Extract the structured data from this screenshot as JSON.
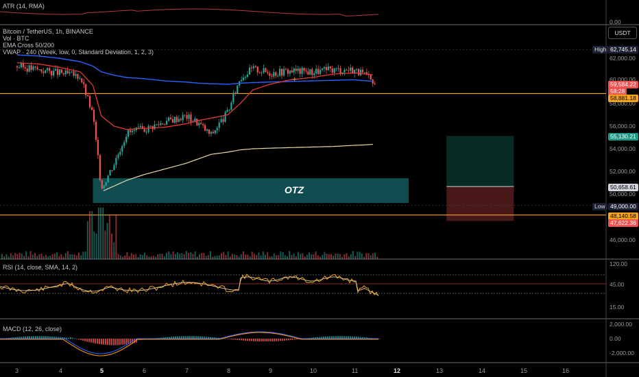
{
  "atr_pane": {
    "label": "ATR (14, RMA)",
    "ticks": [
      "",
      "0.00"
    ]
  },
  "header": {
    "symbol_line": "Bitcoin / TetherUS, 1h, BINANCE",
    "vol_line": "Vol · BTC",
    "ema_line": "EMA Cross 50/200",
    "vwap_line": "VWAP · 240 (Week, low, 0, Standard Deviation, 1, 2, 3)"
  },
  "currency_button": "USDT",
  "price_axis": {
    "ticks": [
      "62,000.00",
      "60,000.00",
      "58,000.00",
      "56,000.00",
      "54,000.00",
      "52,000.00",
      "50,000.00",
      "46,000.00"
    ],
    "high_label": "High",
    "high_value": "62,745.14",
    "low_label": "Low",
    "low_value": "49,000.00",
    "last_price": "59,584.22",
    "countdown": "58:28",
    "resistance_value": "58,881.18",
    "target_value": "55,130.21",
    "entry_value": "50,658.61",
    "support_value": "48,140.58",
    "stop_value": "47,622.36"
  },
  "zone_label": "OTZ",
  "rsi_pane": {
    "label": "RSI (14, close, SMA, 14, 2)",
    "ticks": [
      "120.00",
      "45.00",
      "15.00"
    ]
  },
  "macd_pane": {
    "label": "MACD (12, 26, close)",
    "ticks": [
      "2,000.00",
      "0.00",
      "-2,000.00"
    ]
  },
  "time_axis": [
    "3",
    "4",
    "5",
    "6",
    "7",
    "8",
    "9",
    "10",
    "11",
    "12",
    "13",
    "14",
    "15",
    "16"
  ],
  "colors": {
    "up": "#26a69a",
    "down": "#ef5350",
    "ema50": "#e53935",
    "ema200": "#2962ff",
    "vwap": "#e8d9a8",
    "level": "#f7a21b",
    "zone": "#1e8c93",
    "rsi": "#f7a21b",
    "macd": "#2962ff",
    "signal": "#ff9800"
  },
  "chart_data": {
    "type": "candlestick",
    "symbol": "Bitcoin / TetherUS",
    "interval": "1h",
    "x": [
      "3",
      "3.5",
      "4",
      "4.5",
      "4.8",
      "5",
      "5.3",
      "5.6",
      "6",
      "6.5",
      "7",
      "7.3",
      "7.6",
      "8",
      "8.3",
      "8.6",
      "9",
      "9.5",
      "10",
      "10.5",
      "11",
      "11.3",
      "11.5"
    ],
    "close": [
      61300,
      61000,
      60700,
      60400,
      57000,
      50500,
      52700,
      55400,
      55700,
      56400,
      56900,
      56300,
      55200,
      57200,
      60300,
      61100,
      60700,
      60900,
      60800,
      61000,
      61000,
      60400,
      59584.22
    ],
    "ema50": [
      61600,
      61500,
      61200,
      60800,
      59600,
      56900,
      56000,
      55700,
      55800,
      55900,
      56200,
      56500,
      56700,
      57000,
      58000,
      59200,
      59700,
      60100,
      60300,
      60600,
      60700,
      60600,
      60500
    ],
    "ema200": [
      62300,
      62200,
      62000,
      61700,
      61300,
      60800,
      60500,
      60300,
      60200,
      60000,
      59900,
      59800,
      59750,
      59700,
      59800,
      59850,
      59900,
      59950,
      60000,
      60050,
      60100,
      60000,
      59950
    ],
    "vwap": [
      null,
      null,
      null,
      null,
      null,
      50200,
      50700,
      51200,
      51700,
      52200,
      52700,
      53100,
      53500,
      53700,
      53900,
      54000,
      54050,
      54100,
      54150,
      54200,
      54300,
      54350,
      54400
    ],
    "levels": [
      58881.18,
      48140.58
    ],
    "zone": {
      "label": "OTZ",
      "from_x": "4.8",
      "to_x": "12.3",
      "low": 49200,
      "high": 51400
    },
    "position": {
      "entry": 50658.61,
      "target": 55130.21,
      "stop": 47622.36,
      "from_x": "13.2",
      "to_x": "14.8"
    },
    "high": 62745.14,
    "low": 49000,
    "ylim": [
      44000,
      65000
    ]
  }
}
